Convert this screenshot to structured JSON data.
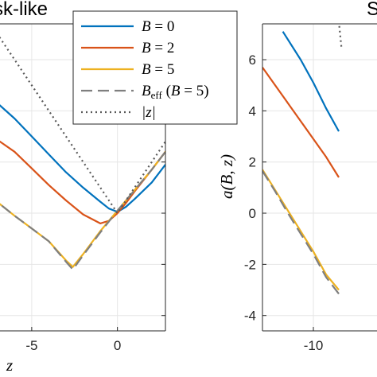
{
  "chart_data": [
    {
      "type": "line",
      "title": "sk-like",
      "xlabel": "z",
      "ylabel": "",
      "xlim": [
        -7.5,
        2.8
      ],
      "ylim": [
        -4.6,
        7.4
      ],
      "xticks": [
        -5,
        0
      ],
      "x_tick_labels": [
        "-5",
        "0"
      ],
      "yticks": [
        -4,
        -2,
        0,
        2,
        4,
        6
      ],
      "grid": true,
      "series": [
        {
          "name": "B = 0",
          "color": "#0072BD",
          "style": "solid",
          "x": [
            -7.5,
            -6,
            -5,
            -4,
            -3,
            -2,
            -1,
            -0.5,
            0,
            0.5,
            1,
            2,
            2.8
          ],
          "y": [
            4.6,
            3.7,
            3.0,
            2.3,
            1.6,
            1.0,
            0.45,
            0.18,
            0.05,
            0.25,
            0.55,
            1.2,
            1.9
          ]
        },
        {
          "name": "B = 2",
          "color": "#D95319",
          "style": "solid",
          "x": [
            -7.5,
            -6,
            -5,
            -4,
            -3,
            -2,
            -1,
            -0.5,
            0,
            0.5,
            1,
            2,
            2.8
          ],
          "y": [
            3.1,
            2.4,
            1.75,
            1.1,
            0.5,
            -0.05,
            -0.4,
            -0.3,
            0.0,
            0.4,
            0.85,
            1.7,
            2.4
          ]
        },
        {
          "name": "B = 5",
          "color": "#EDB120",
          "style": "solid",
          "x": [
            -7.5,
            -6,
            -5,
            -4,
            -3,
            -2.6,
            -2,
            -1,
            0,
            1,
            2,
            2.8
          ],
          "y": [
            0.7,
            -0.1,
            -0.6,
            -1.1,
            -1.85,
            -2.1,
            -1.6,
            -0.7,
            0.1,
            0.9,
            1.7,
            2.4
          ]
        },
        {
          "name": "B_eff (B = 5)",
          "color": "#7F7F7F",
          "style": "dashed",
          "x": [
            -7.5,
            -6,
            -5,
            -4,
            -3,
            -2.6,
            -2,
            -1,
            0,
            1,
            2,
            2.8
          ],
          "y": [
            0.7,
            -0.1,
            -0.6,
            -1.1,
            -1.9,
            -2.2,
            -1.65,
            -0.75,
            0.1,
            0.9,
            1.7,
            2.4
          ]
        },
        {
          "name": "|z|",
          "color": "#595959",
          "style": "dotted",
          "x": [
            -7.5,
            -5,
            -2.5,
            0,
            1,
            2,
            2.8
          ],
          "y": [
            7.5,
            5.0,
            2.5,
            0.0,
            1.0,
            2.0,
            2.8
          ]
        }
      ]
    },
    {
      "type": "line",
      "title": "S",
      "xlabel": "",
      "ylabel": "a(B, z)",
      "xlim": [
        -14,
        -5
      ],
      "ylim": [
        -4.6,
        7.4
      ],
      "xticks": [
        -10
      ],
      "x_tick_labels": [
        "-10"
      ],
      "yticks": [
        -4,
        -2,
        0,
        2,
        4,
        6
      ],
      "y_tick_labels": [
        "-4",
        "-2",
        "0",
        "2",
        "4",
        "6"
      ],
      "grid": true,
      "series": [
        {
          "name": "B = 0",
          "color": "#0072BD",
          "style": "solid",
          "x": [
            -12.4,
            -11,
            -10,
            -9,
            -8
          ],
          "y": [
            7.1,
            6.0,
            5.1,
            4.1,
            3.2
          ]
        },
        {
          "name": "B = 2",
          "color": "#D95319",
          "style": "solid",
          "x": [
            -14,
            -13,
            -12,
            -11,
            -10,
            -9,
            -8
          ],
          "y": [
            5.7,
            5.0,
            4.3,
            3.6,
            2.9,
            2.2,
            1.4
          ]
        },
        {
          "name": "B = 5",
          "color": "#EDB120",
          "style": "solid",
          "x": [
            -14,
            -13,
            -12,
            -11,
            -10,
            -9,
            -8
          ],
          "y": [
            1.7,
            0.9,
            0.1,
            -0.7,
            -1.5,
            -2.4,
            -3.0
          ]
        },
        {
          "name": "B_eff (B = 5)",
          "color": "#7F7F7F",
          "style": "dashed",
          "x": [
            -14,
            -13,
            -12,
            -11,
            -10,
            -9,
            -8
          ],
          "y": [
            1.65,
            0.85,
            0.0,
            -0.8,
            -1.6,
            -2.5,
            -3.15
          ]
        },
        {
          "name": "|z|",
          "color": "#595959",
          "style": "dotted",
          "x": [
            -8,
            -7.9,
            -7.8
          ],
          "y": [
            7.5,
            7.0,
            6.5
          ]
        }
      ]
    }
  ],
  "legend": {
    "entries": [
      {
        "label_var": "B",
        "label_rest": " = 0",
        "color": "#0072BD",
        "style": "solid"
      },
      {
        "label_var": "B",
        "label_rest": " = 2",
        "color": "#D95319",
        "style": "solid"
      },
      {
        "label_var": "B",
        "label_rest": " = 5",
        "color": "#EDB120",
        "style": "solid"
      },
      {
        "label_var": "B",
        "label_sub": "eff",
        "label_rest": " (",
        "label_var2": "B",
        "label_rest2": " = 5)",
        "color": "#7F7F7F",
        "style": "dashed"
      },
      {
        "label_var": "|z|",
        "label_rest": "",
        "color": "#595959",
        "style": "dotted"
      }
    ]
  },
  "colors": {
    "grid": "#e6e6e6",
    "axis": "#262626"
  }
}
